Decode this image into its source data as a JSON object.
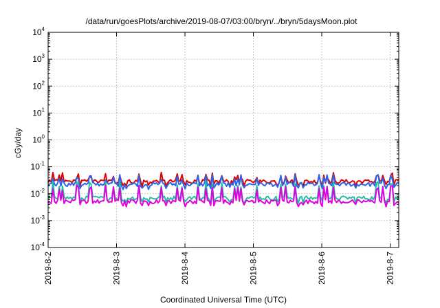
{
  "chart_data": {
    "type": "line",
    "title": "/data/run/goesPlots/archive/2019-08-07/03:00/bryn/../bryn/5daysMoon.plot",
    "xlabel": "Coordinated Universal Time (UTC)",
    "ylabel": "cGy/day",
    "yscale": "log",
    "ylim": [
      0.0001,
      10000
    ],
    "y_ticks": [
      {
        "base": "10",
        "exp": "-4",
        "value": 0.0001
      },
      {
        "base": "10",
        "exp": "-3",
        "value": 0.001
      },
      {
        "base": "10",
        "exp": "-2",
        "value": 0.01
      },
      {
        "base": "10",
        "exp": "-1",
        "value": 0.1
      },
      {
        "base": "10",
        "exp": "0",
        "value": 1
      },
      {
        "base": "10",
        "exp": "1",
        "value": 10
      },
      {
        "base": "10",
        "exp": "2",
        "value": 100
      },
      {
        "base": "10",
        "exp": "3",
        "value": 1000
      },
      {
        "base": "10",
        "exp": "4",
        "value": 10000
      }
    ],
    "x_ticks": [
      "2019-8-2",
      "2019-8-3",
      "2019-8-4",
      "2019-8-5",
      "2019-8-6",
      "2019-8-7"
    ],
    "xlim": [
      "2019-08-02T00:00",
      "2019-08-07T03:00"
    ],
    "grid": true,
    "legend": "none",
    "series": [
      {
        "color": "#e00000",
        "baseline": 0.028,
        "spike": 0.048
      },
      {
        "color": "#2a64e8",
        "baseline": 0.022,
        "spike": 0.04
      },
      {
        "color": "#20c0a0",
        "baseline": 0.0068,
        "spike": 0.022
      },
      {
        "color": "#e000e0",
        "baseline": 0.005,
        "spike": 0.016
      }
    ]
  }
}
